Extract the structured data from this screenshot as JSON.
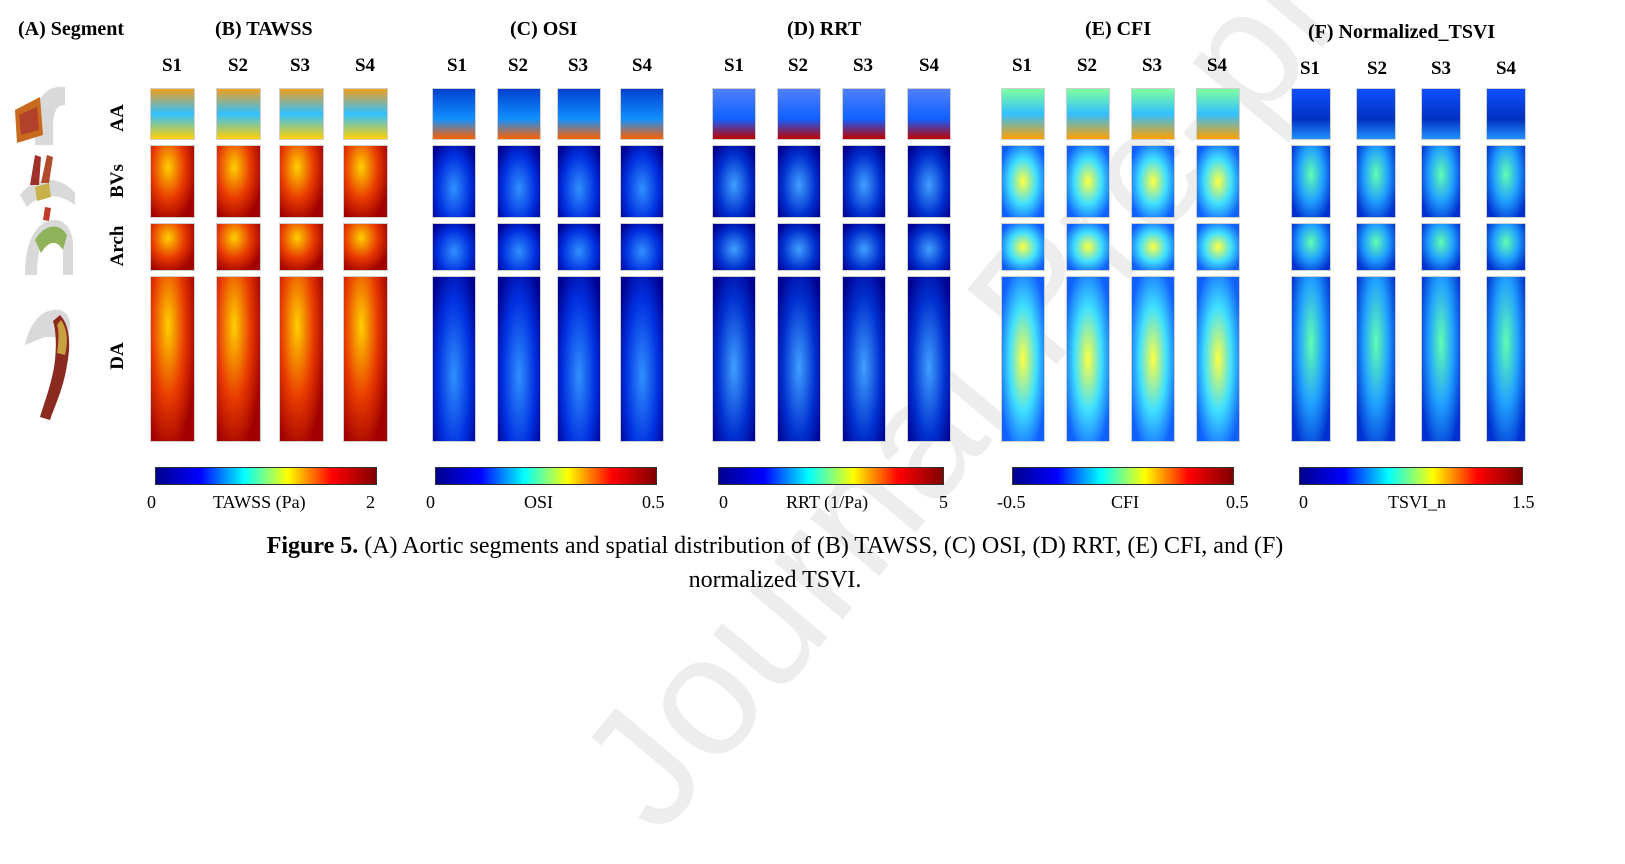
{
  "panels": {
    "A": {
      "title": "(A) Segment"
    },
    "B": {
      "title": "(B) TAWSS",
      "cbar_min": "0",
      "cbar_label": "TAWSS  (Pa)",
      "cbar_max": "2"
    },
    "C": {
      "title": "(C) OSI",
      "cbar_min": "0",
      "cbar_label": "OSI",
      "cbar_max": "0.5"
    },
    "D": {
      "title": "(D) RRT",
      "cbar_min": "0",
      "cbar_label": "RRT (1/Pa)",
      "cbar_max": "5"
    },
    "E": {
      "title": "(E) CFI",
      "cbar_min": "-0.5",
      "cbar_label": "CFI",
      "cbar_max": "0.5"
    },
    "F": {
      "title": "(F) Normalized_TSVI",
      "cbar_min": "0",
      "cbar_label": "TSVI_n",
      "cbar_max": "1.5"
    }
  },
  "cases": [
    "S1",
    "S2",
    "S3",
    "S4"
  ],
  "segments": [
    "AA",
    "BVs",
    "Arch",
    "DA"
  ],
  "caption": {
    "label": "Figure 5.",
    "text": " (A) Aortic segments and spatial distribution of (B) TAWSS, (C) OSI, (D) RRT, (E) CFI, and (F)",
    "line2": "normalized TSVI."
  },
  "watermark": "Journal Pre-proof",
  "colors": {
    "jet": [
      "#00008f",
      "#0000ff",
      "#00ffff",
      "#ffff00",
      "#ff0000",
      "#800000"
    ]
  }
}
